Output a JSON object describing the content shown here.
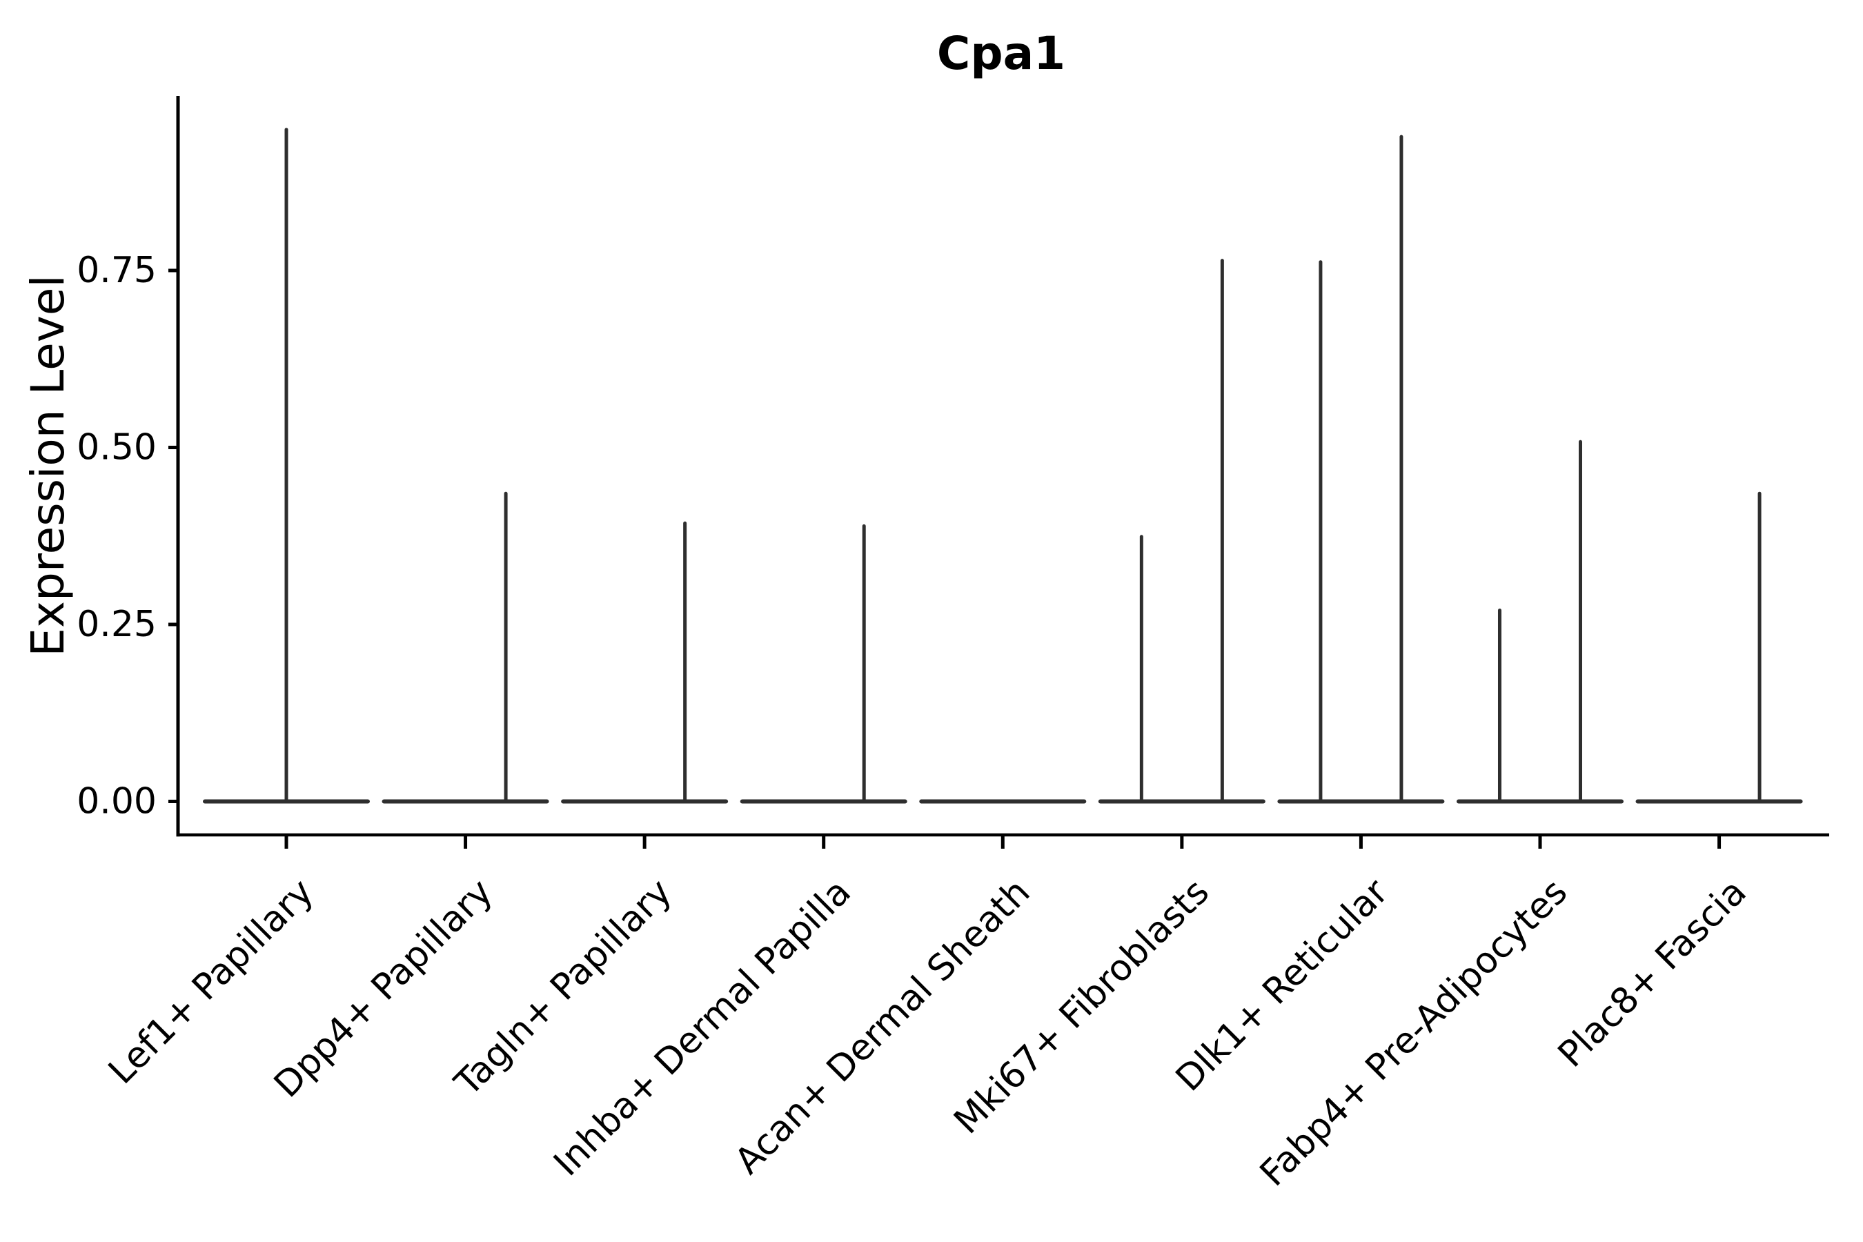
{
  "style": {
    "background": "#ffffff",
    "axis_color": "#000000",
    "text_color": "#000000",
    "violin_color": "#2e2e2e"
  },
  "chart_data": {
    "type": "violin",
    "title": "Cpa1",
    "xlabel": "",
    "ylabel": "Expression Level",
    "ylim": [
      -0.05,
      1.0
    ],
    "yticks": [
      0,
      0.25,
      0.5,
      0.75
    ],
    "ytick_labels": [
      "0.00",
      "0.25",
      "0.50",
      "0.75"
    ],
    "grid": false,
    "legend": "none",
    "spines": [
      "left",
      "bottom"
    ],
    "x_tick_label_rotation_deg": 45,
    "categories": [
      "Lef1+ Papillary",
      "Dpp4+ Papillary",
      "Tagln+ Papillary",
      "Inhba+ Dermal Papilla",
      "Acan+ Dermal Sheath",
      "Mki67+ Fibroblasts",
      "Dlk1+ Reticular",
      "Fabp4+ Pre-Adipocytes",
      "Plac8+ Fascia"
    ],
    "violins": [
      {
        "category": "Lef1+ Papillary",
        "zero_base": true,
        "spikes": [
          {
            "position": "center",
            "max": 0.949
          }
        ]
      },
      {
        "category": "Dpp4+ Papillary",
        "zero_base": true,
        "spikes": [
          {
            "position": "right",
            "max": 0.435
          }
        ]
      },
      {
        "category": "Tagln+ Papillary",
        "zero_base": true,
        "spikes": [
          {
            "position": "right",
            "max": 0.393
          }
        ]
      },
      {
        "category": "Inhba+ Dermal Papilla",
        "zero_base": true,
        "spikes": [
          {
            "position": "right",
            "max": 0.389
          }
        ]
      },
      {
        "category": "Acan+ Dermal Sheath",
        "zero_base": true,
        "spikes": []
      },
      {
        "category": "Mki67+ Fibroblasts",
        "zero_base": true,
        "spikes": [
          {
            "position": "left",
            "max": 0.374
          },
          {
            "position": "right",
            "max": 0.764
          }
        ]
      },
      {
        "category": "Dlk1+ Reticular",
        "zero_base": true,
        "spikes": [
          {
            "position": "left",
            "max": 0.762
          },
          {
            "position": "right",
            "max": 0.939
          }
        ]
      },
      {
        "category": "Fabp4+ Pre-Adipocytes",
        "zero_base": true,
        "spikes": [
          {
            "position": "left",
            "max": 0.27
          },
          {
            "position": "right",
            "max": 0.508
          }
        ]
      },
      {
        "category": "Plac8+ Fascia",
        "zero_base": true,
        "spikes": [
          {
            "position": "right",
            "max": 0.435
          }
        ]
      }
    ]
  }
}
